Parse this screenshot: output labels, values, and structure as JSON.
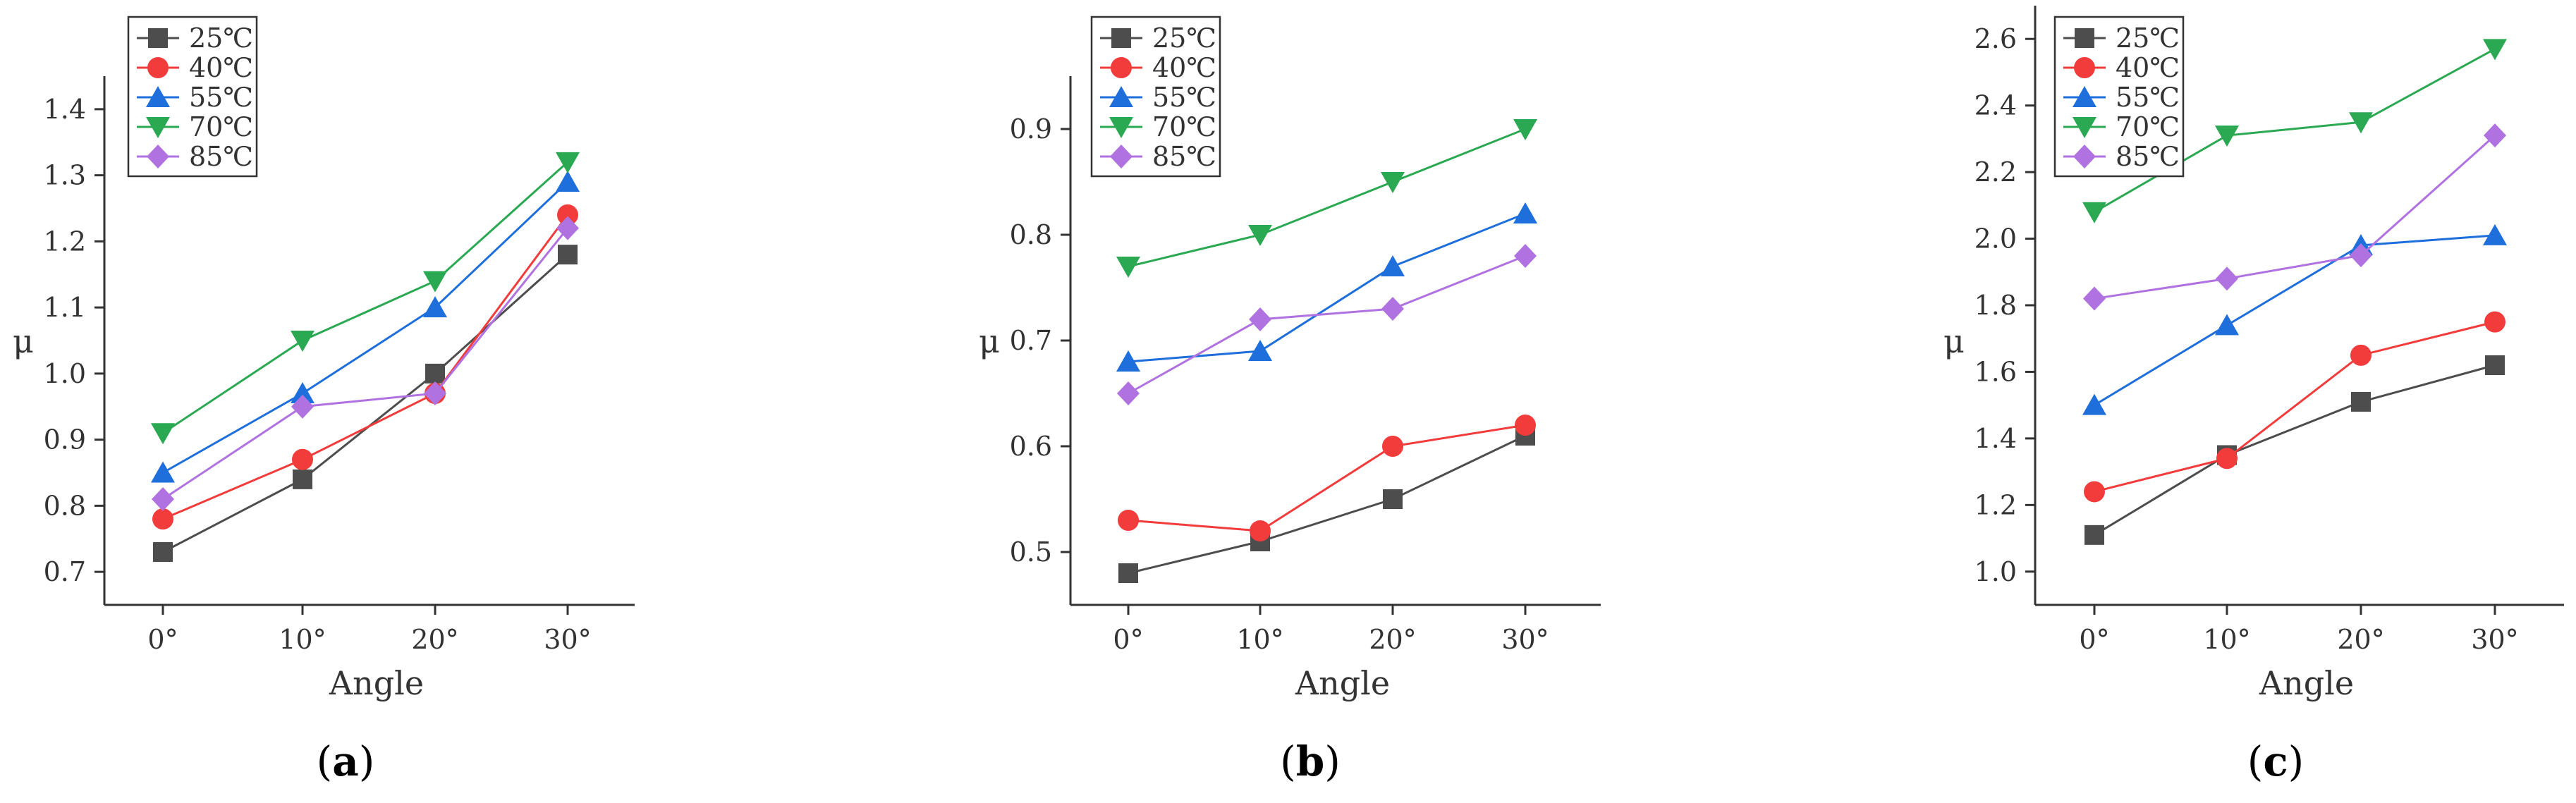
{
  "series_styles": [
    {
      "name": "25℃",
      "color": "#4d4d4d",
      "marker": "square"
    },
    {
      "name": "40℃",
      "color": "#f23b3b",
      "marker": "circle"
    },
    {
      "name": "55℃",
      "color": "#1e6fdc",
      "marker": "triangle-up"
    },
    {
      "name": "70℃",
      "color": "#2aa952",
      "marker": "triangle-down"
    },
    {
      "name": "85℃",
      "color": "#b072e0",
      "marker": "diamond"
    }
  ],
  "chart_data": [
    {
      "type": "line",
      "panel_label": {
        "open": "(",
        "letter": "a",
        "close": ")"
      },
      "categories": [
        "0°",
        "10°",
        "20°",
        "30°"
      ],
      "xlabel": "Angle",
      "ylabel": "μ",
      "ylim": [
        0.65,
        1.45
      ],
      "yticks": [
        0.7,
        0.8,
        0.9,
        1.0,
        1.1,
        1.2,
        1.3,
        1.4
      ],
      "ytick_labels": [
        "0.7",
        "0.8",
        "0.9",
        "1.0",
        "1.1",
        "1.2",
        "1.3",
        "1.4"
      ],
      "legend_position": "top-left",
      "series": [
        {
          "name": "25℃",
          "values": [
            0.73,
            0.84,
            1.0,
            1.18
          ]
        },
        {
          "name": "40℃",
          "values": [
            0.78,
            0.87,
            0.97,
            1.24
          ]
        },
        {
          "name": "55℃",
          "values": [
            0.85,
            0.97,
            1.1,
            1.29
          ]
        },
        {
          "name": "70℃",
          "values": [
            0.91,
            1.05,
            1.14,
            1.32
          ]
        },
        {
          "name": "85℃",
          "values": [
            0.81,
            0.95,
            0.97,
            1.22
          ]
        }
      ]
    },
    {
      "type": "line",
      "panel_label": {
        "open": "(",
        "letter": "b",
        "close": ")"
      },
      "categories": [
        "0°",
        "10°",
        "20°",
        "30°"
      ],
      "xlabel": "Angle",
      "ylabel": "μ",
      "ylim": [
        0.45,
        0.95
      ],
      "yticks": [
        0.5,
        0.6,
        0.7,
        0.8,
        0.9
      ],
      "ytick_labels": [
        "0.5",
        "0.6",
        "0.7",
        "0.8",
        "0.9"
      ],
      "legend_position": "top-left",
      "series": [
        {
          "name": "25℃",
          "values": [
            0.48,
            0.51,
            0.55,
            0.61
          ]
        },
        {
          "name": "40℃",
          "values": [
            0.53,
            0.52,
            0.6,
            0.62
          ]
        },
        {
          "name": "55℃",
          "values": [
            0.68,
            0.69,
            0.77,
            0.82
          ]
        },
        {
          "name": "70℃",
          "values": [
            0.77,
            0.8,
            0.85,
            0.9
          ]
        },
        {
          "name": "85℃",
          "values": [
            0.65,
            0.72,
            0.73,
            0.78
          ]
        }
      ]
    },
    {
      "type": "line",
      "panel_label": {
        "open": "(",
        "letter": "c",
        "close": ")"
      },
      "categories": [
        "0°",
        "10°",
        "20°",
        "30°"
      ],
      "xlabel": "Angle",
      "ylabel": "μ",
      "ylim": [
        0.9,
        2.7
      ],
      "yticks": [
        1.0,
        1.2,
        1.4,
        1.6,
        1.8,
        2.0,
        2.2,
        2.4,
        2.6
      ],
      "ytick_labels": [
        "1.0",
        "1.2",
        "1.4",
        "1.6",
        "1.8",
        "2.0",
        "2.2",
        "2.4",
        "2.6"
      ],
      "legend_position": "top-left",
      "series": [
        {
          "name": "25℃",
          "values": [
            1.11,
            1.35,
            1.51,
            1.62
          ]
        },
        {
          "name": "40℃",
          "values": [
            1.24,
            1.34,
            1.65,
            1.75
          ]
        },
        {
          "name": "55℃",
          "values": [
            1.5,
            1.74,
            1.98,
            2.01
          ]
        },
        {
          "name": "70℃",
          "values": [
            2.08,
            2.31,
            2.35,
            2.57
          ]
        },
        {
          "name": "85℃",
          "values": [
            1.82,
            1.88,
            1.95,
            2.31
          ]
        }
      ]
    }
  ]
}
